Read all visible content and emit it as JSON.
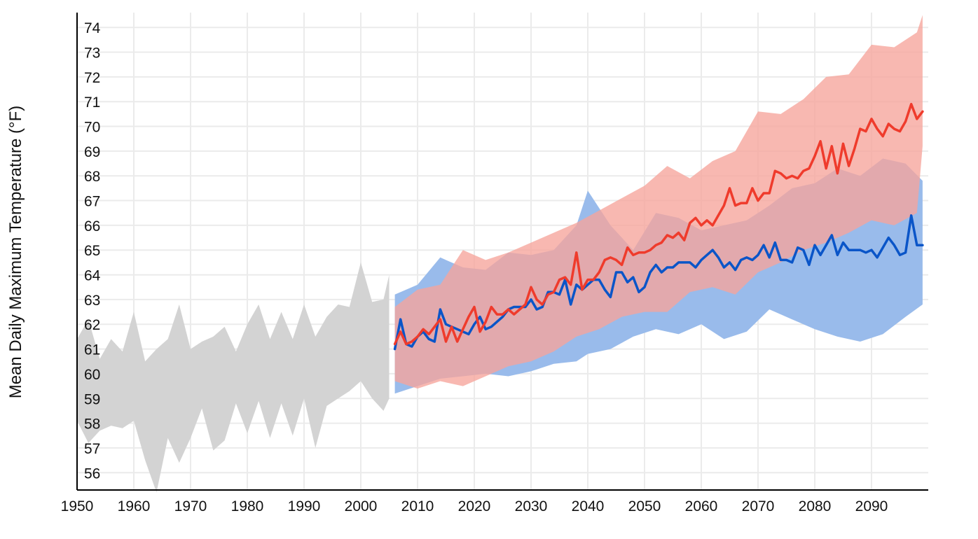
{
  "chart_data": {
    "type": "area",
    "title": "",
    "ylabel": "Mean Daily Maximum Temperature (°F)",
    "xlabel": "",
    "xlim": [
      1950,
      2100
    ],
    "ylim": [
      55.3,
      74.6
    ],
    "x_ticks": [
      1950,
      1960,
      1970,
      1980,
      1990,
      2000,
      2010,
      2020,
      2030,
      2040,
      2050,
      2060,
      2070,
      2080,
      2090
    ],
    "y_ticks": [
      56,
      57,
      58,
      59,
      60,
      61,
      62,
      63,
      64,
      65,
      66,
      67,
      68,
      69,
      70,
      71,
      72,
      73,
      74
    ],
    "grid": true,
    "colors": {
      "observed_band": "#d3d3d3",
      "low_emissions_band": "#99bbeb",
      "low_emissions_line": "#0a55c8",
      "high_emissions_band": "#f6a49b",
      "high_emissions_line": "#ef3b2c",
      "overlap_note": "#c0959d"
    },
    "series": [
      {
        "kind": "band",
        "key": "observed",
        "x": [
          1950,
          1952,
          1954,
          1956,
          1958,
          1960,
          1962,
          1964,
          1966,
          1968,
          1970,
          1972,
          1974,
          1976,
          1978,
          1980,
          1982,
          1984,
          1986,
          1988,
          1990,
          1992,
          1994,
          1996,
          1998,
          2000,
          2002,
          2004,
          2005
        ],
        "high": [
          61.4,
          62.2,
          60.6,
          61.4,
          60.9,
          62.5,
          60.5,
          61.0,
          61.4,
          62.8,
          61.0,
          61.3,
          61.5,
          61.9,
          60.9,
          62.0,
          62.8,
          61.4,
          62.5,
          61.4,
          62.8,
          61.5,
          62.3,
          62.8,
          62.7,
          64.5,
          62.9,
          63.0,
          64.0
        ],
        "low": [
          58.1,
          57.2,
          57.7,
          57.9,
          57.8,
          58.1,
          56.5,
          55.2,
          57.4,
          56.4,
          57.4,
          58.6,
          56.9,
          57.3,
          58.8,
          57.6,
          58.9,
          57.4,
          58.8,
          57.5,
          59.0,
          57.0,
          58.7,
          59.0,
          59.3,
          59.7,
          59.0,
          58.5,
          59.0
        ]
      },
      {
        "kind": "band",
        "key": "low_emissions",
        "x": [
          2006,
          2010,
          2014,
          2018,
          2022,
          2026,
          2030,
          2034,
          2038,
          2040,
          2044,
          2048,
          2052,
          2056,
          2060,
          2064,
          2068,
          2072,
          2076,
          2080,
          2084,
          2088,
          2092,
          2096,
          2099
        ],
        "high": [
          63.2,
          63.6,
          64.7,
          64.3,
          64.2,
          64.9,
          64.8,
          65.0,
          66.0,
          67.4,
          66.0,
          65.0,
          66.5,
          66.3,
          65.8,
          66.0,
          66.2,
          66.8,
          67.5,
          67.7,
          68.3,
          68.0,
          68.7,
          68.5,
          67.8
        ],
        "low": [
          59.2,
          59.5,
          59.8,
          59.9,
          60.0,
          59.9,
          60.1,
          60.4,
          60.5,
          60.8,
          61.0,
          61.5,
          61.8,
          61.6,
          62.0,
          61.4,
          61.7,
          62.6,
          62.2,
          61.8,
          61.5,
          61.3,
          61.6,
          62.3,
          62.8
        ]
      },
      {
        "kind": "band",
        "key": "high_emissions",
        "x": [
          2006,
          2010,
          2014,
          2018,
          2022,
          2026,
          2030,
          2034,
          2038,
          2042,
          2046,
          2050,
          2054,
          2058,
          2062,
          2066,
          2070,
          2074,
          2078,
          2082,
          2086,
          2090,
          2094,
          2098,
          2099
        ],
        "high": [
          62.7,
          63.4,
          63.6,
          65.0,
          64.6,
          64.9,
          65.3,
          65.7,
          66.1,
          66.6,
          67.1,
          67.6,
          68.4,
          67.9,
          68.6,
          69.0,
          70.6,
          70.5,
          71.1,
          72.0,
          72.1,
          73.3,
          73.2,
          73.8,
          74.5
        ],
        "low": [
          59.7,
          59.4,
          59.7,
          59.5,
          59.9,
          60.3,
          60.5,
          60.9,
          61.5,
          61.8,
          62.3,
          62.5,
          62.5,
          63.3,
          63.5,
          63.2,
          64.1,
          64.5,
          65.0,
          65.3,
          65.7,
          66.2,
          66.0,
          66.5,
          69.2
        ]
      },
      {
        "kind": "line",
        "key": "low_emissions_median",
        "x": [
          2006,
          2007,
          2008,
          2009,
          2010,
          2011,
          2012,
          2013,
          2014,
          2015,
          2016,
          2017,
          2018,
          2019,
          2020,
          2021,
          2022,
          2023,
          2024,
          2025,
          2026,
          2027,
          2028,
          2029,
          2030,
          2031,
          2032,
          2033,
          2034,
          2035,
          2036,
          2037,
          2038,
          2039,
          2040,
          2041,
          2042,
          2043,
          2044,
          2045,
          2046,
          2047,
          2048,
          2049,
          2050,
          2051,
          2052,
          2053,
          2054,
          2055,
          2056,
          2057,
          2058,
          2059,
          2060,
          2061,
          2062,
          2063,
          2064,
          2065,
          2066,
          2067,
          2068,
          2069,
          2070,
          2071,
          2072,
          2073,
          2074,
          2075,
          2076,
          2077,
          2078,
          2079,
          2080,
          2081,
          2082,
          2083,
          2084,
          2085,
          2086,
          2087,
          2088,
          2089,
          2090,
          2091,
          2092,
          2093,
          2094,
          2095,
          2096,
          2097,
          2098,
          2099
        ],
        "y": [
          61.0,
          62.2,
          61.2,
          61.1,
          61.5,
          61.7,
          61.4,
          61.3,
          62.6,
          62.0,
          61.9,
          61.8,
          61.7,
          61.6,
          62.0,
          62.3,
          61.8,
          61.9,
          62.1,
          62.3,
          62.6,
          62.7,
          62.7,
          62.7,
          63.0,
          62.6,
          62.7,
          63.3,
          63.3,
          63.2,
          63.8,
          62.8,
          63.6,
          63.4,
          63.6,
          63.8,
          63.8,
          63.4,
          63.1,
          64.1,
          64.1,
          63.7,
          63.9,
          63.3,
          63.5,
          64.1,
          64.4,
          64.1,
          64.3,
          64.3,
          64.5,
          64.5,
          64.5,
          64.3,
          64.6,
          64.8,
          65.0,
          64.7,
          64.3,
          64.5,
          64.2,
          64.6,
          64.7,
          64.6,
          64.8,
          65.2,
          64.7,
          65.3,
          64.6,
          64.6,
          64.5,
          65.1,
          65.0,
          64.4,
          65.2,
          64.8,
          65.2,
          65.6,
          64.8,
          65.3,
          65.0,
          65.0,
          65.0,
          64.9,
          65.0,
          64.7,
          65.1,
          65.5,
          65.2,
          64.8,
          64.9,
          66.4,
          65.2,
          65.2
        ]
      },
      {
        "kind": "line",
        "key": "high_emissions_median",
        "x": [
          2006,
          2007,
          2008,
          2009,
          2010,
          2011,
          2012,
          2013,
          2014,
          2015,
          2016,
          2017,
          2018,
          2019,
          2020,
          2021,
          2022,
          2023,
          2024,
          2025,
          2026,
          2027,
          2028,
          2029,
          2030,
          2031,
          2032,
          2033,
          2034,
          2035,
          2036,
          2037,
          2038,
          2039,
          2040,
          2041,
          2042,
          2043,
          2044,
          2045,
          2046,
          2047,
          2048,
          2049,
          2050,
          2051,
          2052,
          2053,
          2054,
          2055,
          2056,
          2057,
          2058,
          2059,
          2060,
          2061,
          2062,
          2063,
          2064,
          2065,
          2066,
          2067,
          2068,
          2069,
          2070,
          2071,
          2072,
          2073,
          2074,
          2075,
          2076,
          2077,
          2078,
          2079,
          2080,
          2081,
          2082,
          2083,
          2084,
          2085,
          2086,
          2087,
          2088,
          2089,
          2090,
          2091,
          2092,
          2093,
          2094,
          2095,
          2096,
          2097,
          2098,
          2099
        ],
        "y": [
          61.2,
          61.7,
          61.2,
          61.3,
          61.5,
          61.8,
          61.6,
          61.9,
          62.2,
          61.3,
          61.9,
          61.3,
          61.8,
          62.3,
          62.7,
          61.7,
          62.1,
          62.7,
          62.4,
          62.4,
          62.6,
          62.4,
          62.6,
          62.8,
          63.5,
          63.0,
          62.8,
          63.2,
          63.3,
          63.8,
          63.9,
          63.6,
          64.9,
          63.4,
          63.8,
          63.8,
          64.1,
          64.6,
          64.7,
          64.6,
          64.4,
          65.1,
          64.8,
          64.9,
          64.9,
          65.0,
          65.2,
          65.3,
          65.6,
          65.5,
          65.7,
          65.4,
          66.1,
          66.3,
          66.0,
          66.2,
          66.0,
          66.4,
          66.8,
          67.5,
          66.8,
          66.9,
          66.9,
          67.5,
          67.0,
          67.3,
          67.3,
          68.2,
          68.1,
          67.9,
          68.0,
          67.9,
          68.2,
          68.3,
          68.8,
          69.4,
          68.3,
          69.2,
          68.1,
          69.3,
          68.4,
          69.1,
          69.9,
          69.8,
          70.3,
          69.9,
          69.6,
          70.1,
          69.9,
          69.8,
          70.2,
          70.9,
          70.3,
          70.6
        ]
      }
    ]
  }
}
